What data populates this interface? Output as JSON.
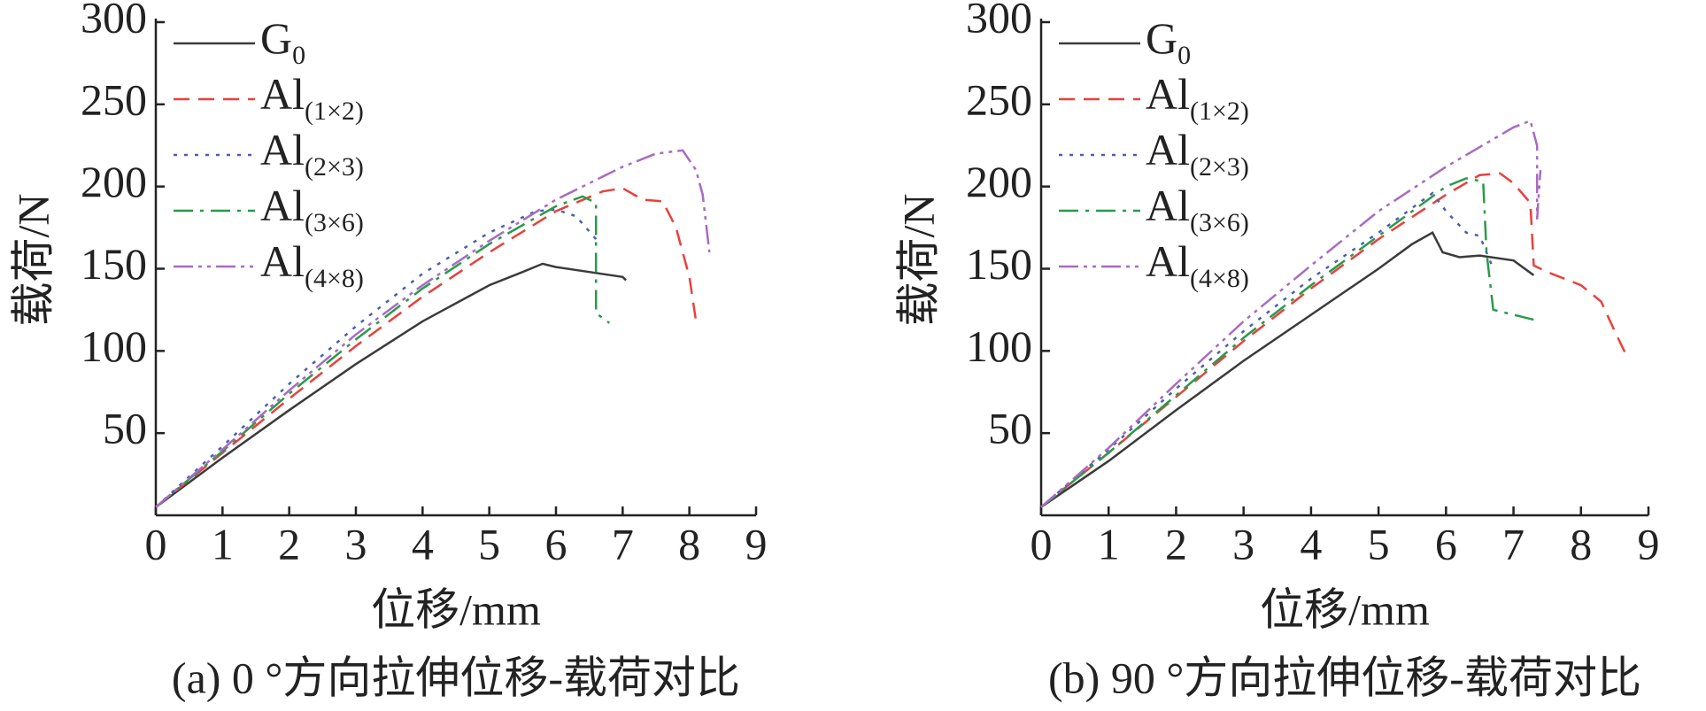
{
  "chart_data": [
    {
      "type": "line",
      "caption": "(a) 0 °方向拉伸位移-载荷对比",
      "xlabel": "位移/mm",
      "ylabel": "载荷/N",
      "xlim": [
        0,
        9
      ],
      "ylim": [
        0,
        300
      ],
      "xticks": [
        0,
        1,
        2,
        3,
        4,
        5,
        6,
        7,
        8,
        9
      ],
      "yticks": [
        50,
        100,
        150,
        200,
        250,
        300
      ],
      "legend": "upper left",
      "series": [
        {
          "name": "G0",
          "color": "#3b3b3b",
          "line_style": "solid",
          "x": [
            0,
            1,
            2,
            3,
            4,
            5,
            5.5,
            5.8,
            6,
            6.5,
            7,
            7.05
          ],
          "values": [
            5,
            35,
            64,
            92,
            118,
            140,
            148,
            153,
            151,
            148,
            145,
            143
          ]
        },
        {
          "name": "Al(1×2)",
          "color": "#e8413c",
          "line_style": "dashed",
          "x": [
            0,
            1,
            2,
            3,
            4,
            5,
            6,
            6.7,
            7,
            7.3,
            7.6,
            7.8,
            8,
            8.1
          ],
          "values": [
            5,
            38,
            71,
            103,
            133,
            160,
            185,
            197,
            199,
            192,
            191,
            175,
            145,
            118
          ]
        },
        {
          "name": "Al(2×3)",
          "color": "#4a5fb0",
          "line_style": "dotted",
          "x": [
            0,
            1,
            2,
            3,
            4,
            5,
            5.7,
            6,
            6.3,
            6.6
          ],
          "values": [
            5,
            42,
            80,
            115,
            147,
            172,
            185,
            186,
            182,
            168
          ]
        },
        {
          "name": "Al(3×6)",
          "color": "#2a9a4a",
          "line_style": "dashdot",
          "x": [
            0,
            1,
            2,
            3,
            4,
            5,
            6,
            6.4,
            6.6,
            6.6,
            6.6,
            6.8
          ],
          "values": [
            5,
            39,
            74,
            107,
            138,
            165,
            188,
            194,
            190,
            150,
            123,
            117
          ]
        },
        {
          "name": "Al(4×8)",
          "color": "#a86bc0",
          "line_style": "dashdotdot",
          "x": [
            0,
            1,
            2,
            3,
            4,
            5,
            6,
            7,
            7.5,
            7.9,
            8.1,
            8.2,
            8.3
          ],
          "values": [
            5,
            40,
            76,
            110,
            140,
            167,
            192,
            212,
            220,
            222,
            210,
            195,
            160
          ]
        }
      ]
    },
    {
      "type": "line",
      "caption": "(b) 90 °方向拉伸位移-载荷对比",
      "xlabel": "位移/mm",
      "ylabel": "载荷/N",
      "xlim": [
        0,
        9
      ],
      "ylim": [
        0,
        300
      ],
      "xticks": [
        0,
        1,
        2,
        3,
        4,
        5,
        6,
        7,
        8,
        9
      ],
      "yticks": [
        50,
        100,
        150,
        200,
        250,
        300
      ],
      "legend": "upper left",
      "series": [
        {
          "name": "G0",
          "color": "#3b3b3b",
          "line_style": "solid",
          "x": [
            0,
            1,
            2,
            3,
            4,
            5,
            5.5,
            5.8,
            5.95,
            6.2,
            6.5,
            7,
            7.3
          ],
          "values": [
            5,
            33,
            64,
            94,
            122,
            150,
            165,
            172,
            160,
            157,
            158,
            155,
            146
          ]
        },
        {
          "name": "Al(1×2)",
          "color": "#e8413c",
          "line_style": "dashed",
          "x": [
            0,
            1,
            2,
            3,
            4,
            5,
            6,
            6.5,
            6.8,
            7,
            7.25,
            7.3,
            7.5,
            8,
            8.3,
            8.5,
            8.7
          ],
          "values": [
            5,
            38,
            72,
            106,
            138,
            168,
            195,
            207,
            208,
            202,
            190,
            152,
            148,
            140,
            130,
            112,
            95
          ]
        },
        {
          "name": "Al(2×3)",
          "color": "#4a5fb0",
          "line_style": "dotted",
          "x": [
            0,
            1,
            2,
            3,
            4,
            5,
            5.8,
            6,
            6.3,
            6.5,
            6.7
          ],
          "values": [
            5,
            40,
            77,
            112,
            144,
            172,
            196,
            185,
            172,
            170,
            150
          ]
        },
        {
          "name": "Al(3×6)",
          "color": "#2a9a4a",
          "line_style": "dashdot",
          "x": [
            0,
            1,
            2,
            3,
            4,
            5,
            6,
            6.3,
            6.55,
            6.6,
            6.7,
            7,
            7.3
          ],
          "values": [
            5,
            38,
            73,
            108,
            140,
            170,
            200,
            205,
            203,
            160,
            125,
            122,
            119
          ]
        },
        {
          "name": "Al(4×8)",
          "color": "#a86bc0",
          "line_style": "dashdotdot",
          "x": [
            0,
            1,
            2,
            3,
            4,
            5,
            6,
            7,
            7.25,
            7.35,
            7.35,
            7.4
          ],
          "values": [
            5,
            41,
            80,
            118,
            152,
            185,
            212,
            236,
            240,
            225,
            180,
            210
          ]
        }
      ]
    }
  ]
}
